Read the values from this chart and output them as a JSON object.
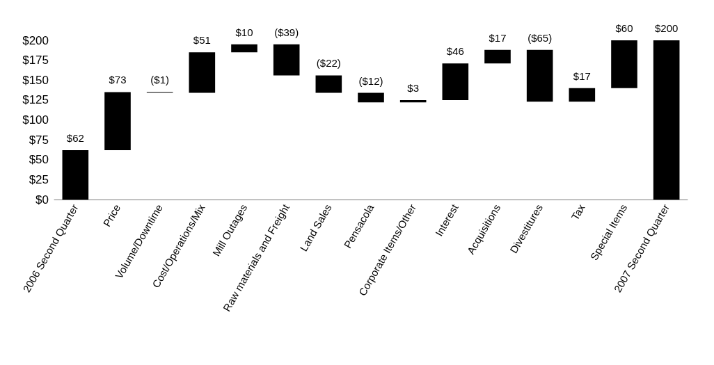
{
  "chart_data": {
    "type": "bar",
    "categories": [
      "2006 Second Quarter",
      "Price",
      "Volume/Downtime",
      "Cost/Operations/Mix",
      "Mill Outages",
      "Raw materials and Freight",
      "Land Sales",
      "Pensacola",
      "Corporate Items/Other",
      "Interest",
      "Acquisitions",
      "Divestitures",
      "Tax",
      "Special Items",
      "2007 Second Quarter"
    ],
    "values": [
      62,
      73,
      -1,
      51,
      10,
      -39,
      -22,
      -12,
      3,
      46,
      17,
      -65,
      17,
      60,
      200
    ],
    "base": [
      0,
      62,
      135,
      134,
      185,
      195,
      156,
      134,
      122,
      125,
      171,
      188,
      123,
      140,
      0
    ],
    "value_labels": [
      "$62",
      "$73",
      "($1)",
      "$51",
      "$10",
      "($39)",
      "($22)",
      "($12)",
      "$3",
      "$46",
      "$17",
      "($65)",
      "$17",
      "$60",
      "$200"
    ],
    "color": "#000000",
    "ylim": [
      0,
      200
    ],
    "yticks": [
      {
        "value": 0,
        "label": "$0"
      },
      {
        "value": 25,
        "label": "$25"
      },
      {
        "value": 50,
        "label": "$50"
      },
      {
        "value": 75,
        "label": "$75"
      },
      {
        "value": 100,
        "label": "$100"
      },
      {
        "value": 125,
        "label": "$125"
      },
      {
        "value": 150,
        "label": "$150"
      },
      {
        "value": 175,
        "label": "$175"
      },
      {
        "value": 200,
        "label": "$200"
      }
    ],
    "grid": false
  }
}
